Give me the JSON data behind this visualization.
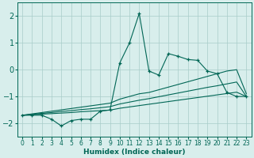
{
  "xlabel": "Humidex (Indice chaleur)",
  "xlim": [
    -0.5,
    23.5
  ],
  "ylim": [
    -2.5,
    2.5
  ],
  "xticks": [
    0,
    1,
    2,
    3,
    4,
    5,
    6,
    7,
    8,
    9,
    10,
    11,
    12,
    13,
    14,
    15,
    16,
    17,
    18,
    19,
    20,
    21,
    22,
    23
  ],
  "yticks": [
    -2,
    -1,
    0,
    1,
    2
  ],
  "bg_color": "#d8eeec",
  "grid_color": "#a8ccc9",
  "line_color": "#006655",
  "x": [
    0,
    1,
    2,
    3,
    4,
    5,
    6,
    7,
    8,
    9,
    10,
    11,
    12,
    13,
    14,
    15,
    16,
    17,
    18,
    19,
    20,
    21,
    22,
    23
  ],
  "main_line": [
    -1.7,
    -1.7,
    -1.7,
    -1.85,
    -2.1,
    -1.9,
    -1.85,
    -1.85,
    -1.55,
    -1.5,
    0.25,
    1.0,
    2.1,
    -0.05,
    -0.2,
    0.6,
    0.5,
    0.38,
    0.35,
    -0.05,
    -0.15,
    -0.85,
    -1.0,
    -1.0
  ],
  "trend_top": [
    -1.7,
    -1.65,
    -1.6,
    -1.55,
    -1.5,
    -1.45,
    -1.4,
    -1.35,
    -1.3,
    -1.25,
    -1.1,
    -1.0,
    -0.9,
    -0.85,
    -0.75,
    -0.65,
    -0.55,
    -0.45,
    -0.35,
    -0.25,
    -0.15,
    -0.05,
    0.0,
    -0.9
  ],
  "trend_mid": [
    -1.7,
    -1.67,
    -1.63,
    -1.6,
    -1.56,
    -1.53,
    -1.49,
    -1.46,
    -1.42,
    -1.38,
    -1.28,
    -1.21,
    -1.14,
    -1.08,
    -1.01,
    -0.94,
    -0.87,
    -0.8,
    -0.73,
    -0.66,
    -0.6,
    -0.53,
    -0.46,
    -1.0
  ],
  "trend_bot": [
    -1.7,
    -1.68,
    -1.66,
    -1.64,
    -1.62,
    -1.6,
    -1.57,
    -1.55,
    -1.53,
    -1.51,
    -1.44,
    -1.39,
    -1.34,
    -1.29,
    -1.24,
    -1.19,
    -1.14,
    -1.09,
    -1.04,
    -0.99,
    -0.94,
    -0.89,
    -0.84,
    -1.0
  ]
}
